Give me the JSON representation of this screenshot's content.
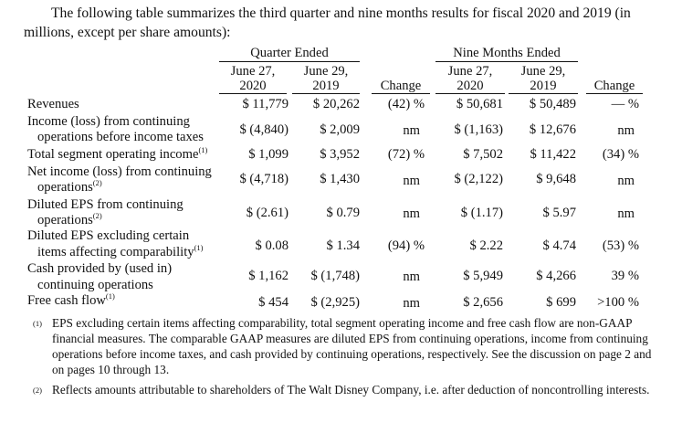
{
  "intro": "The following table summarizes the third quarter and nine months results for fiscal 2020 and 2019 (in millions, except per share amounts):",
  "headers": {
    "quarter_ended": "Quarter Ended",
    "nine_months_ended": "Nine Months Ended",
    "q_col1_line1": "June 27,",
    "q_col1_line2": "2020",
    "q_col2_line1": "June 29,",
    "q_col2_line2": "2019",
    "change": "Change",
    "n_col1_line1": "June 27,",
    "n_col1_line2": "2020",
    "n_col2_line1": "June 29,",
    "n_col2_line2": "2019",
    "change2": "Change"
  },
  "rows": [
    {
      "label1": "Revenues",
      "label2": "",
      "sup": "",
      "q2020": "$ 11,779",
      "q2019": "$ 20,262",
      "qchg": "(42) %",
      "n2020": "$ 50,681",
      "n2019": "$ 50,489",
      "nchg": "— %"
    },
    {
      "label1": "Income (loss) from continuing",
      "label2": "operations before income taxes",
      "sup": "",
      "q2020": "$ (4,840)",
      "q2019": "$    2,009",
      "qchg": "nm",
      "n2020": "$ (1,163)",
      "n2019": "$ 12,676",
      "nchg": "nm"
    },
    {
      "label1": "Total segment operating income",
      "label2": "",
      "sup": "(1)",
      "q2020": "$    1,099",
      "q2019": "$    3,952",
      "qchg": "(72) %",
      "n2020": "$    7,502",
      "n2019": "$ 11,422",
      "nchg": "(34) %"
    },
    {
      "label1": "Net income (loss) from continuing",
      "label2": "operations",
      "sup": "(2)",
      "q2020": "$ (4,718)",
      "q2019": "$    1,430",
      "qchg": "nm",
      "n2020": "$ (2,122)",
      "n2019": "$    9,648",
      "nchg": "nm"
    },
    {
      "label1": "Diluted EPS from continuing",
      "label2": "operations",
      "sup": "(2)",
      "q2020": "$    (2.61)",
      "q2019": "$      0.79",
      "qchg": "nm",
      "n2020": "$    (1.17)",
      "n2019": "$      5.97",
      "nchg": "nm"
    },
    {
      "label1": "Diluted EPS excluding certain",
      "label2": "items affecting comparability",
      "sup": "(1)",
      "q2020": "$      0.08",
      "q2019": "$      1.34",
      "qchg": "(94) %",
      "n2020": "$      2.22",
      "n2019": "$      4.74",
      "nchg": "(53) %"
    },
    {
      "label1": "Cash provided by (used in)",
      "label2": "continuing operations",
      "sup": "",
      "q2020": "$    1,162",
      "q2019": "$ (1,748)",
      "qchg": "nm",
      "n2020": "$    5,949",
      "n2019": "$    4,266",
      "nchg": "39  %"
    },
    {
      "label1": "Free cash flow",
      "label2": "",
      "sup": "(1)",
      "q2020": "$       454",
      "q2019": "$ (2,925)",
      "qchg": "nm",
      "n2020": "$    2,656",
      "n2019": "$       699",
      "nchg": ">100 %"
    }
  ],
  "notes": [
    {
      "ref": "(1)",
      "text": "EPS excluding certain items affecting comparability, total segment operating income and free cash flow are non-GAAP financial measures. The comparable GAAP measures are diluted EPS from continuing operations, income from continuing operations before income taxes, and cash provided by continuing operations, respectively. See the discussion on page 2 and on pages 10 through 13."
    },
    {
      "ref": "(2)",
      "text": "Reflects amounts attributable to shareholders of The Walt Disney Company, i.e. after deduction of noncontrolling interests."
    }
  ]
}
